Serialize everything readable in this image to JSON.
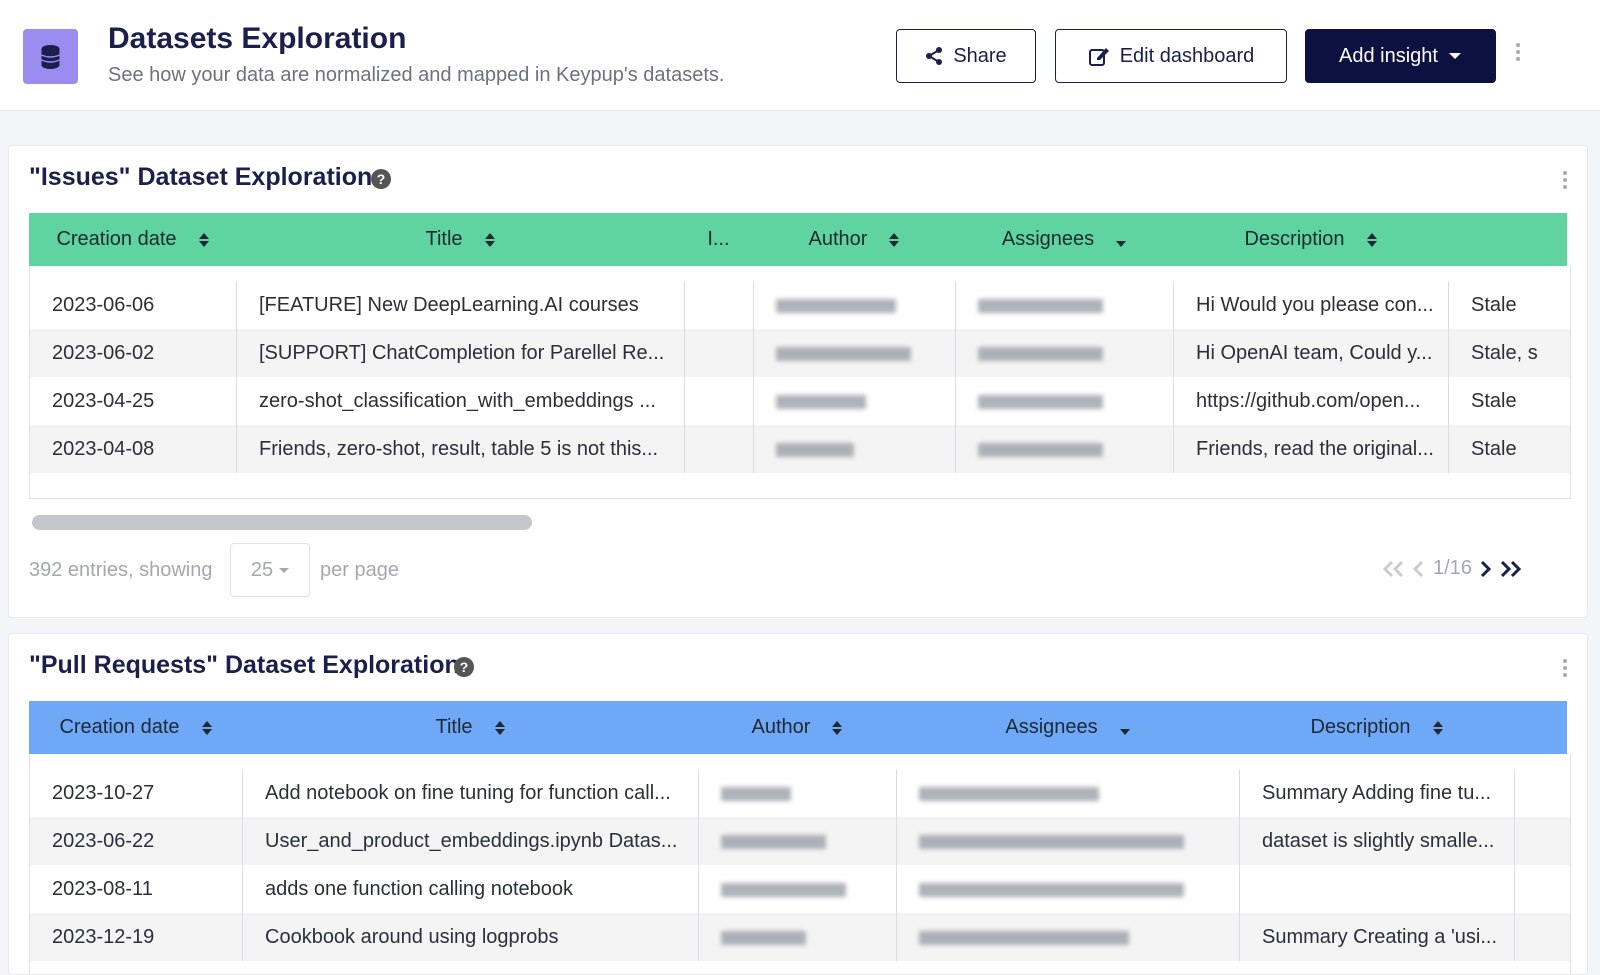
{
  "header": {
    "title": "Datasets Exploration",
    "subtitle": "See how your data are normalized and mapped in Keypup's datasets.",
    "buttons": [
      "Share",
      "Edit dashboard",
      "Add insight"
    ]
  },
  "panels": [
    {
      "title": "\"Issues\" Dataset Exploration",
      "columns": [
        "Creation date",
        "Title",
        "I...",
        "Author",
        "Assignees",
        "Description"
      ],
      "rows": [
        {
          "date": "2023-06-06",
          "title": "[FEATURE] New DeepLearning.AI courses",
          "description": "Hi Would you please con...",
          "status": "Stale"
        },
        {
          "date": "2023-06-02",
          "title": "[SUPPORT] ChatCompletion for Parellel Re...",
          "description": "Hi OpenAI team, Could y...",
          "status": "Stale, s"
        },
        {
          "date": "2023-04-25",
          "title": "zero-shot_classification_with_embeddings ...",
          "description": "https://github.com/open...",
          "status": "Stale"
        },
        {
          "date": "2023-04-08",
          "title": "Friends, zero-shot, result, table 5 is not this...",
          "description": "Friends, read the original...",
          "status": "Stale"
        }
      ],
      "footer": {
        "entries": "392 entries, showing",
        "per_page_value": 25,
        "per_page": "per page",
        "page": "1/16"
      }
    },
    {
      "title": "\"Pull Requests\" Dataset Exploration",
      "columns": [
        "Creation date",
        "Title",
        "Author",
        "Assignees",
        "Description"
      ],
      "rows": [
        {
          "date": "2023-10-27",
          "title": "Add notebook on fine tuning for function call...",
          "description": "Summary Adding fine tu..."
        },
        {
          "date": "2023-06-22",
          "title": "User_and_product_embeddings.ipynb Datas...",
          "description": "dataset is slightly smalle..."
        },
        {
          "date": "2023-08-11",
          "title": "adds one function calling notebook"
        },
        {
          "date": "2023-12-19",
          "title": "Cookbook around using logprobs",
          "description": "Summary Creating a 'usi..."
        }
      ]
    }
  ]
}
